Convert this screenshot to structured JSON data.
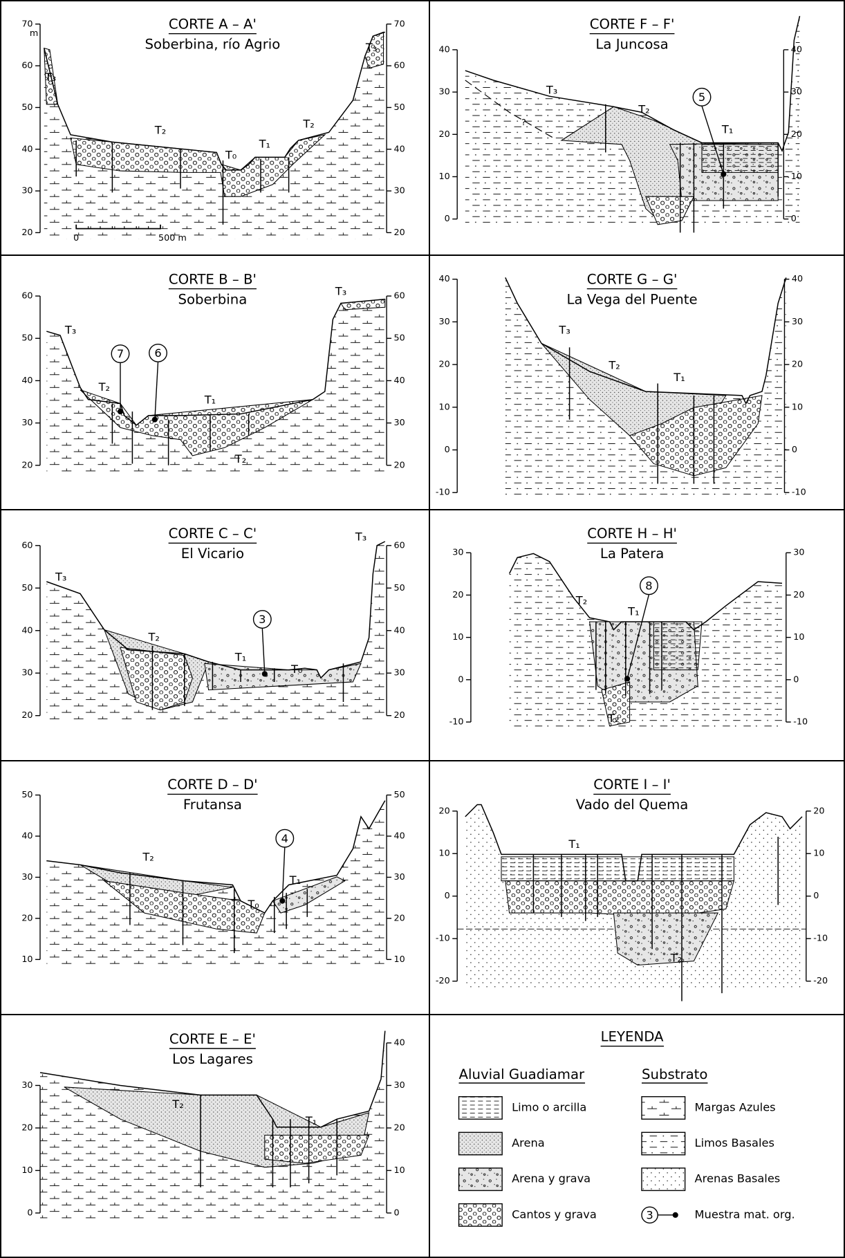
{
  "sections": [
    {
      "title": "CORTE A – A'",
      "subtitle": "Soberbina, río Agrio",
      "unit": "m",
      "left_ticks": [
        70,
        60,
        50,
        40,
        30,
        20
      ],
      "right_ticks": [
        70,
        60,
        50,
        40,
        30,
        20
      ],
      "labels": [
        "T₃",
        "T₂",
        "T₀",
        "T₁",
        "T₂",
        "T₃"
      ],
      "scale_bar": {
        "start": "0",
        "end": "500 m"
      }
    },
    {
      "title": "CORTE B – B'",
      "subtitle": "Soberbina",
      "left_ticks": [
        60,
        50,
        40,
        30,
        20
      ],
      "right_ticks": [
        60,
        50,
        40,
        30,
        20
      ],
      "labels": [
        "T₃",
        "T₃",
        "T₂",
        "T₁",
        "T₂"
      ],
      "samples": [
        "7",
        "6"
      ]
    },
    {
      "title": "CORTE C – C'",
      "subtitle": "El Vicario",
      "left_ticks": [
        60,
        50,
        40,
        30,
        20
      ],
      "right_ticks": [
        60,
        50,
        40,
        30,
        20
      ],
      "labels": [
        "T₃",
        "T₃",
        "T₂",
        "T₁",
        "T₀"
      ],
      "samples": [
        "3"
      ]
    },
    {
      "title": "CORTE D – D'",
      "subtitle": "Frutansa",
      "left_ticks": [
        50,
        40,
        30,
        20,
        10
      ],
      "right_ticks": [
        50,
        40,
        30,
        20,
        10
      ],
      "labels": [
        "T₂",
        "T₀",
        "T₁"
      ],
      "samples": [
        "4"
      ]
    },
    {
      "title": "CORTE E – E'",
      "subtitle": "Los Lagares",
      "left_ticks": [
        30,
        20,
        10,
        0
      ],
      "right_ticks": [
        40,
        30,
        20,
        10,
        0
      ],
      "labels": [
        "T₂",
        "T₁"
      ]
    },
    {
      "title": "CORTE F – F'",
      "subtitle": "La Juncosa",
      "left_ticks": [
        40,
        30,
        20,
        10,
        0
      ],
      "right_ticks": [
        40,
        30,
        20,
        10,
        0
      ],
      "labels": [
        "T₃",
        "T₂",
        "T₁"
      ],
      "samples": [
        "5"
      ],
      "note": "?"
    },
    {
      "title": "CORTE G – G'",
      "subtitle": "La Vega del Puente",
      "left_ticks": [
        40,
        30,
        20,
        10,
        0,
        -10
      ],
      "right_ticks": [
        40,
        30,
        20,
        10,
        0,
        -10
      ],
      "labels": [
        "T₃",
        "T₂",
        "T₁"
      ]
    },
    {
      "title": "CORTE H – H'",
      "subtitle": "La Patera",
      "left_ticks": [
        30,
        20,
        10,
        0,
        -10
      ],
      "right_ticks": [
        30,
        20,
        10,
        0,
        -10
      ],
      "labels": [
        "T₂",
        "T₁",
        "T₂"
      ],
      "samples": [
        "8"
      ]
    },
    {
      "title": "CORTE I – I'",
      "subtitle": "Vado del Quema",
      "left_ticks": [
        20,
        10,
        0,
        -10,
        -20
      ],
      "right_ticks": [
        20,
        10,
        0,
        -10,
        -20
      ],
      "labels": [
        "T₁",
        "T₂"
      ]
    }
  ],
  "legend": {
    "title": "LEYENDA",
    "groups": [
      {
        "title": "Aluvial Guadiamar",
        "items": [
          "Limo o arcilla",
          "Arena",
          "Arena y grava",
          "Cantos y grava"
        ]
      },
      {
        "title": "Substrato",
        "items": [
          "Margas Azules",
          "Limos Basales",
          "Arenas Basales",
          "Muestra mat. org."
        ]
      }
    ],
    "sample_symbol": "3"
  }
}
